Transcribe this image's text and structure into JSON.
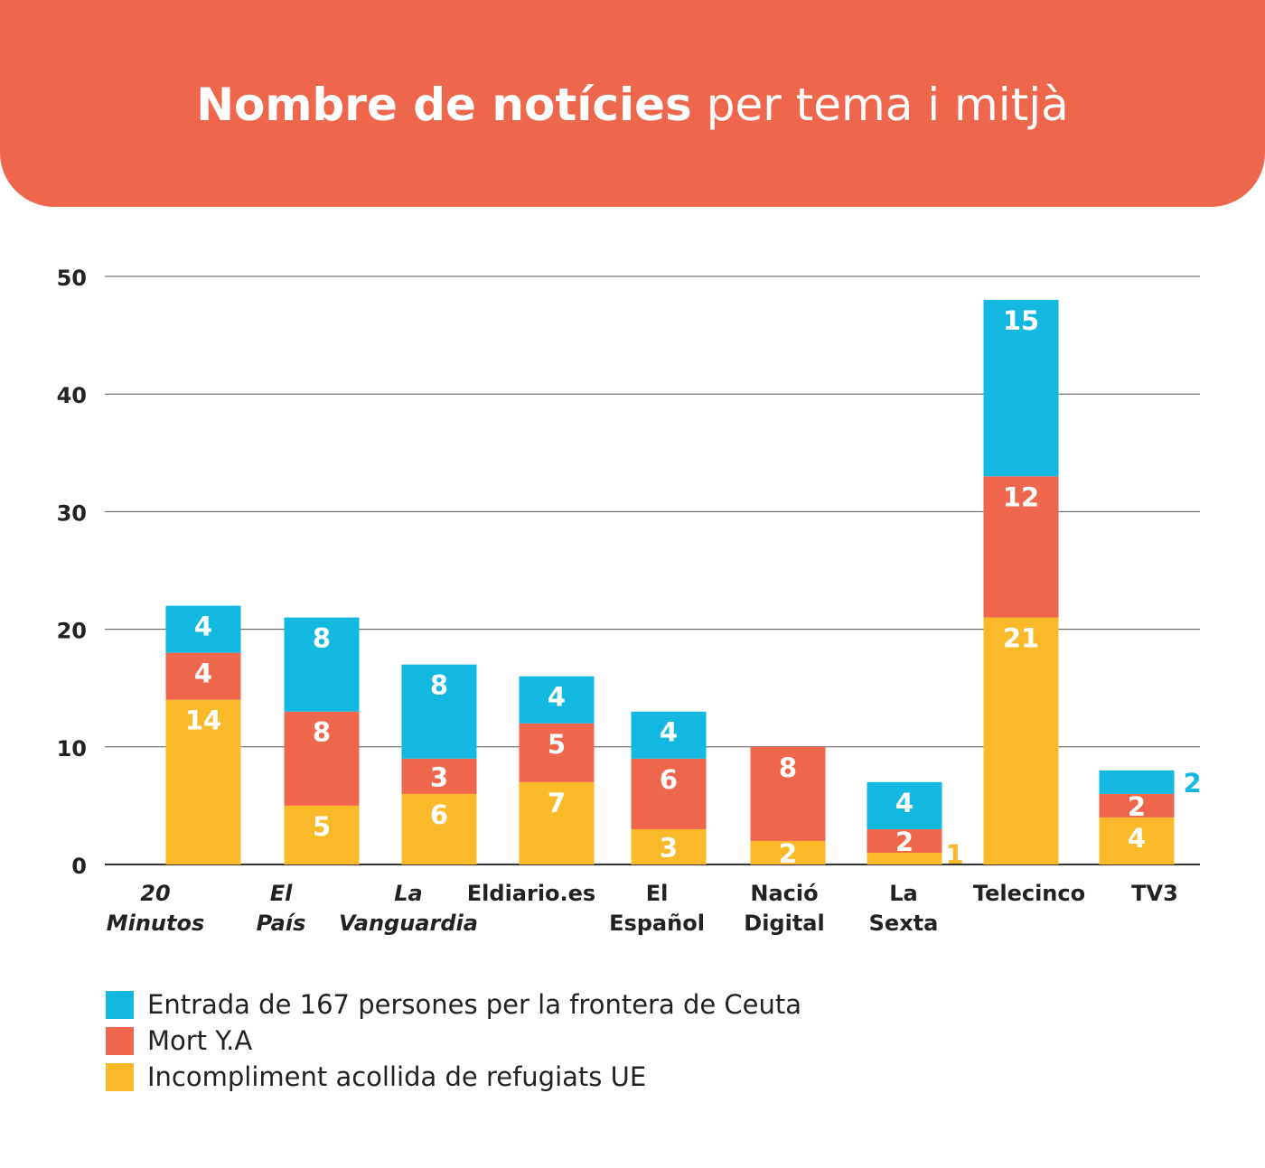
{
  "title": {
    "bold": "Nombre de notícies",
    "light": "per tema i mitjà"
  },
  "colors": {
    "header": "#ee674c",
    "ceuta": "#12b8e0",
    "mort": "#ee674c",
    "refugiats": "#f9b928"
  },
  "chart_data": {
    "type": "bar",
    "stacked": true,
    "categories": [
      [
        "20",
        "Minutos"
      ],
      [
        "El",
        "País"
      ],
      [
        "La",
        "Vanguardia"
      ],
      [
        "Eldiario.es"
      ],
      [
        "El",
        "Español"
      ],
      [
        "Nació",
        "Digital"
      ],
      [
        "La",
        "Sexta"
      ],
      [
        "Telecinco"
      ],
      [
        "TV3"
      ]
    ],
    "italic_categories": [
      0,
      1,
      2
    ],
    "series": [
      {
        "name": "Incompliment acollida de refugiats UE",
        "color": "#f9b928",
        "values": [
          14,
          5,
          6,
          7,
          3,
          2,
          1,
          21,
          4
        ]
      },
      {
        "name": "Mort Y.A",
        "color": "#ee674c",
        "values": [
          4,
          8,
          3,
          5,
          6,
          8,
          2,
          12,
          2
        ]
      },
      {
        "name": "Entrada de 167 persones per la frontera de Ceuta",
        "color": "#12b8e0",
        "values": [
          4,
          8,
          8,
          4,
          4,
          0,
          4,
          15,
          2
        ]
      }
    ],
    "y_ticks": [
      0,
      10,
      20,
      30,
      40,
      50
    ],
    "ylim": [
      0,
      50
    ],
    "grid": true,
    "legend_position": "bottom-left",
    "xlabel": "",
    "ylabel": ""
  },
  "legend": [
    {
      "label": "Entrada de 167 persones per la frontera de Ceuta",
      "color": "#12b8e0"
    },
    {
      "label": "Mort Y.A",
      "color": "#ee674c"
    },
    {
      "label": "Incompliment acollida de refugiats UE",
      "color": "#f9b928"
    }
  ]
}
